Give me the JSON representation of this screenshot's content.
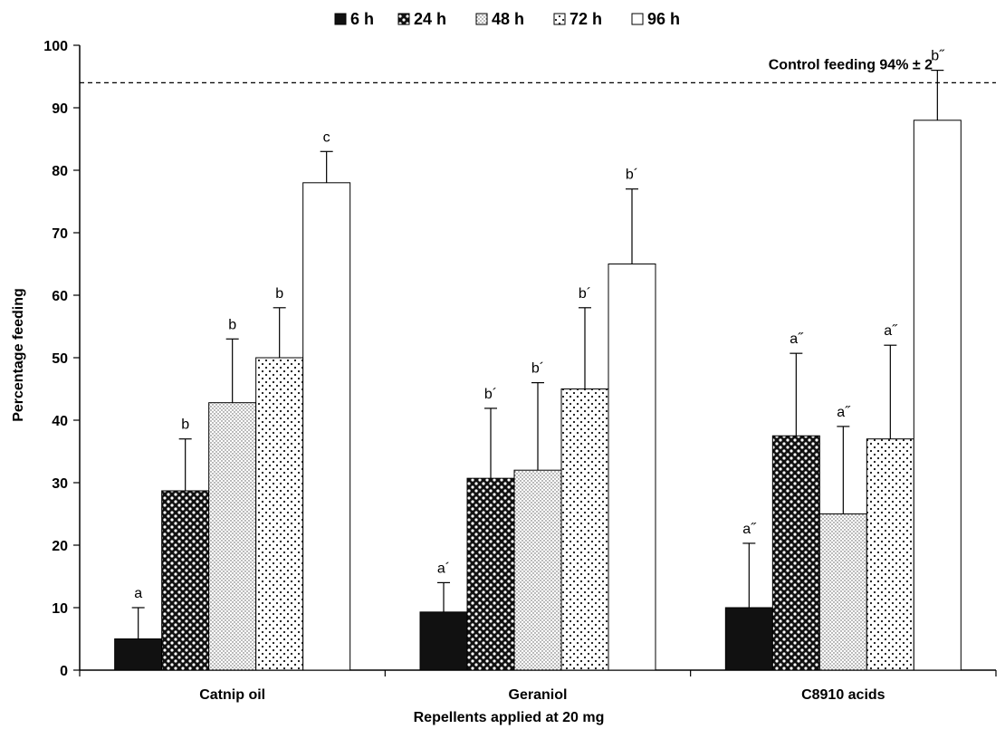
{
  "chart_data": {
    "type": "bar",
    "xlabel": "Repellents applied at 20 mg",
    "ylabel": "Percentage feeding",
    "ylim": [
      0,
      100
    ],
    "yticks": [
      0,
      10,
      20,
      30,
      40,
      50,
      60,
      70,
      80,
      90,
      100
    ],
    "grid": false,
    "legend_position": "top",
    "categories": [
      "Catnip oil",
      "Geraniol",
      "C8910 acids"
    ],
    "series": [
      {
        "name": "6 h",
        "pattern": "solid",
        "values": [
          5,
          9.3,
          10
        ],
        "errors": [
          5,
          4.7,
          10.3
        ],
        "labels": [
          "a",
          "a´",
          "a˝"
        ]
      },
      {
        "name": "24 h",
        "pattern": "checker",
        "values": [
          28.7,
          30.7,
          37.5
        ],
        "errors": [
          8.3,
          11.2,
          13.2
        ],
        "labels": [
          "b",
          "b´",
          "a˝"
        ]
      },
      {
        "name": "48 h",
        "pattern": "fine-dots",
        "values": [
          42.8,
          32,
          25
        ],
        "errors": [
          10.2,
          14,
          14
        ],
        "labels": [
          "b",
          "b´",
          "a˝"
        ]
      },
      {
        "name": "72 h",
        "pattern": "sparse-dots",
        "values": [
          50,
          45,
          37
        ],
        "errors": [
          8,
          13,
          15
        ],
        "labels": [
          "b",
          "b´",
          "a˝"
        ]
      },
      {
        "name": "96 h",
        "pattern": "white",
        "values": [
          78,
          65,
          88
        ],
        "errors": [
          5,
          12,
          8
        ],
        "labels": [
          "c",
          "b´",
          "b˝"
        ]
      }
    ],
    "reference_line": {
      "value": 94,
      "label": "Control feeding 94% ± 2",
      "style": "dashed"
    }
  }
}
